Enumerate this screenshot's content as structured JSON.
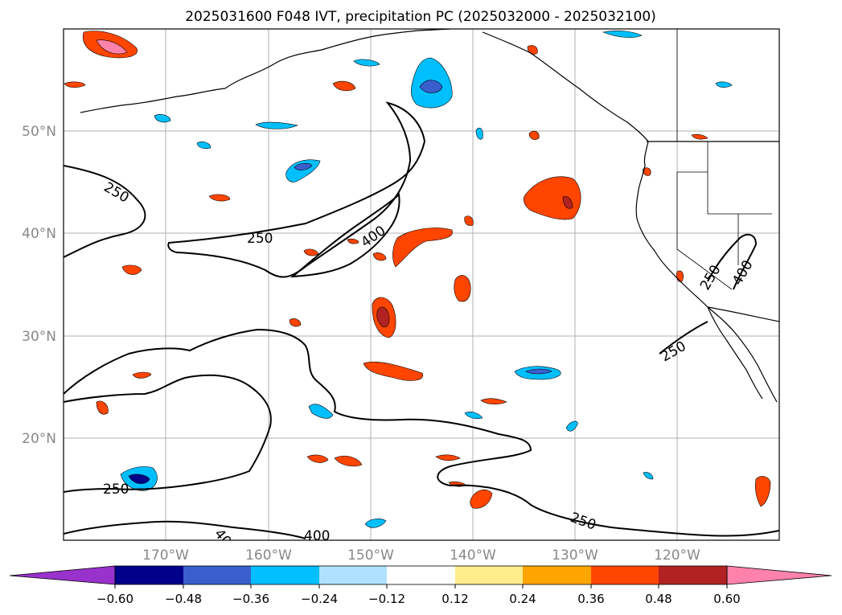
{
  "title": "2025031600 F048 IVT, precipitation PC (2025032000 - 2025032100)",
  "axes": {
    "lat_ticks": [
      "20°N",
      "30°N",
      "40°N",
      "50°N"
    ],
    "lon_ticks": [
      "170°W",
      "160°W",
      "150°W",
      "140°W",
      "130°W",
      "120°W"
    ]
  },
  "contour_labels": [
    "250",
    "250",
    "250",
    "250",
    "400",
    "400",
    "250",
    "250",
    "400",
    "40"
  ],
  "colorbar": {
    "tick_labels": [
      "−0.60",
      "−0.48",
      "−0.36",
      "−0.24",
      "−0.12",
      "0.12",
      "0.24",
      "0.36",
      "0.48",
      "0.60"
    ],
    "colors": [
      "#9932cc",
      "#00008b",
      "#3a5fcd",
      "#00bfff",
      "#b0e2ff",
      "#ffffff",
      "#ffec8b",
      "#ffa500",
      "#ff4500",
      "#b22222",
      "#ff82ab"
    ]
  },
  "colors": {
    "coastline": "#000000",
    "ivt_contour": "#000000",
    "gridline": "#b0b0b0",
    "tick_label": "#888888"
  }
}
